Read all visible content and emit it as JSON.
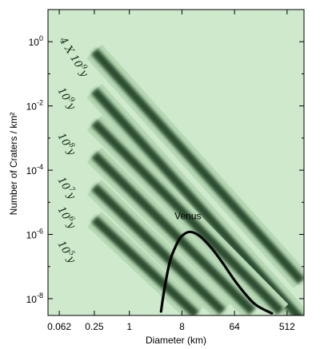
{
  "chart_data": {
    "type": "line",
    "xlabel": "Diameter (km)",
    "ylabel": "Number of Craters / km²",
    "x_scale": "log2",
    "y_scale": "log10",
    "xlim": [
      0.04,
      1000
    ],
    "ylim": [
      3e-09,
      10
    ],
    "x_ticks": [
      {
        "value": 0.0625,
        "label": "0.062"
      },
      {
        "value": 0.25,
        "label": "0.25"
      },
      {
        "value": 1,
        "label": "1"
      },
      {
        "value": 8,
        "label": "8"
      },
      {
        "value": 64,
        "label": "64"
      },
      {
        "value": 512,
        "label": "512"
      }
    ],
    "y_ticks": [
      {
        "value": 1,
        "base": "10",
        "exp": "0"
      },
      {
        "value": 0.01,
        "base": "10",
        "exp": "-2"
      },
      {
        "value": 0.0001,
        "base": "10",
        "exp": "-4"
      },
      {
        "value": 1e-06,
        "base": "10",
        "exp": "-6"
      },
      {
        "value": 1e-08,
        "base": "10",
        "exp": "-8"
      }
    ],
    "isochrons": [
      {
        "label_base": "4 X 10",
        "label_exp": "9",
        "label_unit": "y",
        "points": [
          [
            0.25,
            0.5
          ],
          [
            900,
            3.5e-08
          ]
        ]
      },
      {
        "label_base": "10",
        "label_exp": "9",
        "label_unit": "y",
        "points": [
          [
            0.25,
            0.03
          ],
          [
            900,
            2.2e-09
          ]
        ]
      },
      {
        "label_base": "10",
        "label_exp": "8",
        "label_unit": "y",
        "points": [
          [
            0.25,
            0.003
          ],
          [
            400,
            4e-09
          ]
        ]
      },
      {
        "label_base": "10",
        "label_exp": "7",
        "label_unit": "y",
        "points": [
          [
            0.25,
            0.0003
          ],
          [
            130,
            4e-09
          ]
        ]
      },
      {
        "label_base": "10",
        "label_exp": "6",
        "label_unit": "y",
        "points": [
          [
            0.25,
            3e-05
          ],
          [
            40,
            4e-09
          ]
        ]
      },
      {
        "label_base": "10",
        "label_exp": "5",
        "label_unit": "y",
        "points": [
          [
            0.25,
            3e-06
          ],
          [
            14,
            3.2e-09
          ]
        ]
      }
    ],
    "series": [
      {
        "name": "Venus",
        "values": [
          [
            3.5,
            4e-09
          ],
          [
            4,
            2e-08
          ],
          [
            5,
            1.5e-07
          ],
          [
            6.5,
            5e-07
          ],
          [
            8,
            9e-07
          ],
          [
            11,
            1.2e-06
          ],
          [
            16,
            9e-07
          ],
          [
            25,
            4e-07
          ],
          [
            40,
            1.3e-07
          ],
          [
            70,
            3e-08
          ],
          [
            140,
            7e-09
          ],
          [
            280,
            3.5e-09
          ]
        ]
      }
    ],
    "annotations": [
      {
        "text": "Venus",
        "x": 9.5,
        "y": 1.5e-06
      }
    ],
    "legend": "none",
    "grid": false
  }
}
